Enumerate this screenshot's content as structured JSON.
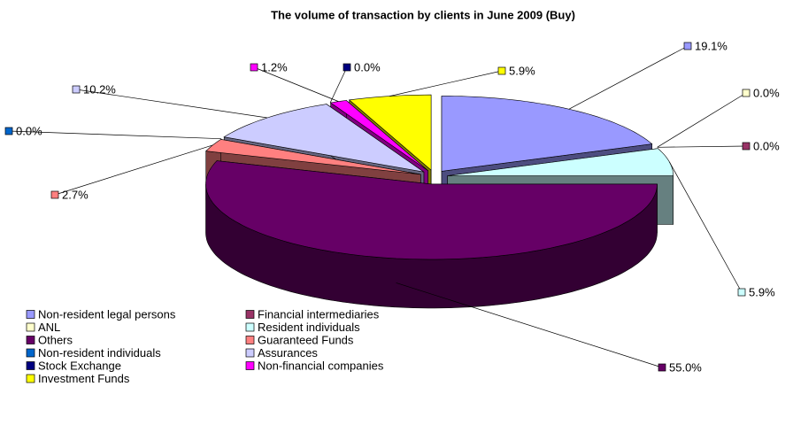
{
  "chart_data": {
    "type": "pie3d",
    "title": "The volume of transaction by clients in June 2009 (Buy)",
    "categories": [
      "Non-resident legal persons",
      "Financial intermediaries",
      "ANL",
      "Resident  individuals",
      "Others",
      "Guaranteed Funds",
      "Non-resident individuals",
      "Assurances",
      "Stock Exchange",
      "Non-financial companies",
      "Investment Funds"
    ],
    "values": [
      19.1,
      0.0,
      0.0,
      5.9,
      55.0,
      2.7,
      0.0,
      10.2,
      0.0,
      1.2,
      5.9
    ],
    "value_labels": [
      "19.1%",
      "0.0%",
      "0.0%",
      "5.9%",
      "55.0%",
      "2.7%",
      "0.0%",
      "10.2%",
      "0.0%",
      "1.2%",
      "5.9%"
    ],
    "colors": [
      "#9999FF",
      "#993366",
      "#FFFFCC",
      "#CCFFFF",
      "#660066",
      "#FF8080",
      "#0066CC",
      "#CCCCFF",
      "#000080",
      "#FF00FF",
      "#FFFF00"
    ],
    "legend": "bottom-left"
  }
}
